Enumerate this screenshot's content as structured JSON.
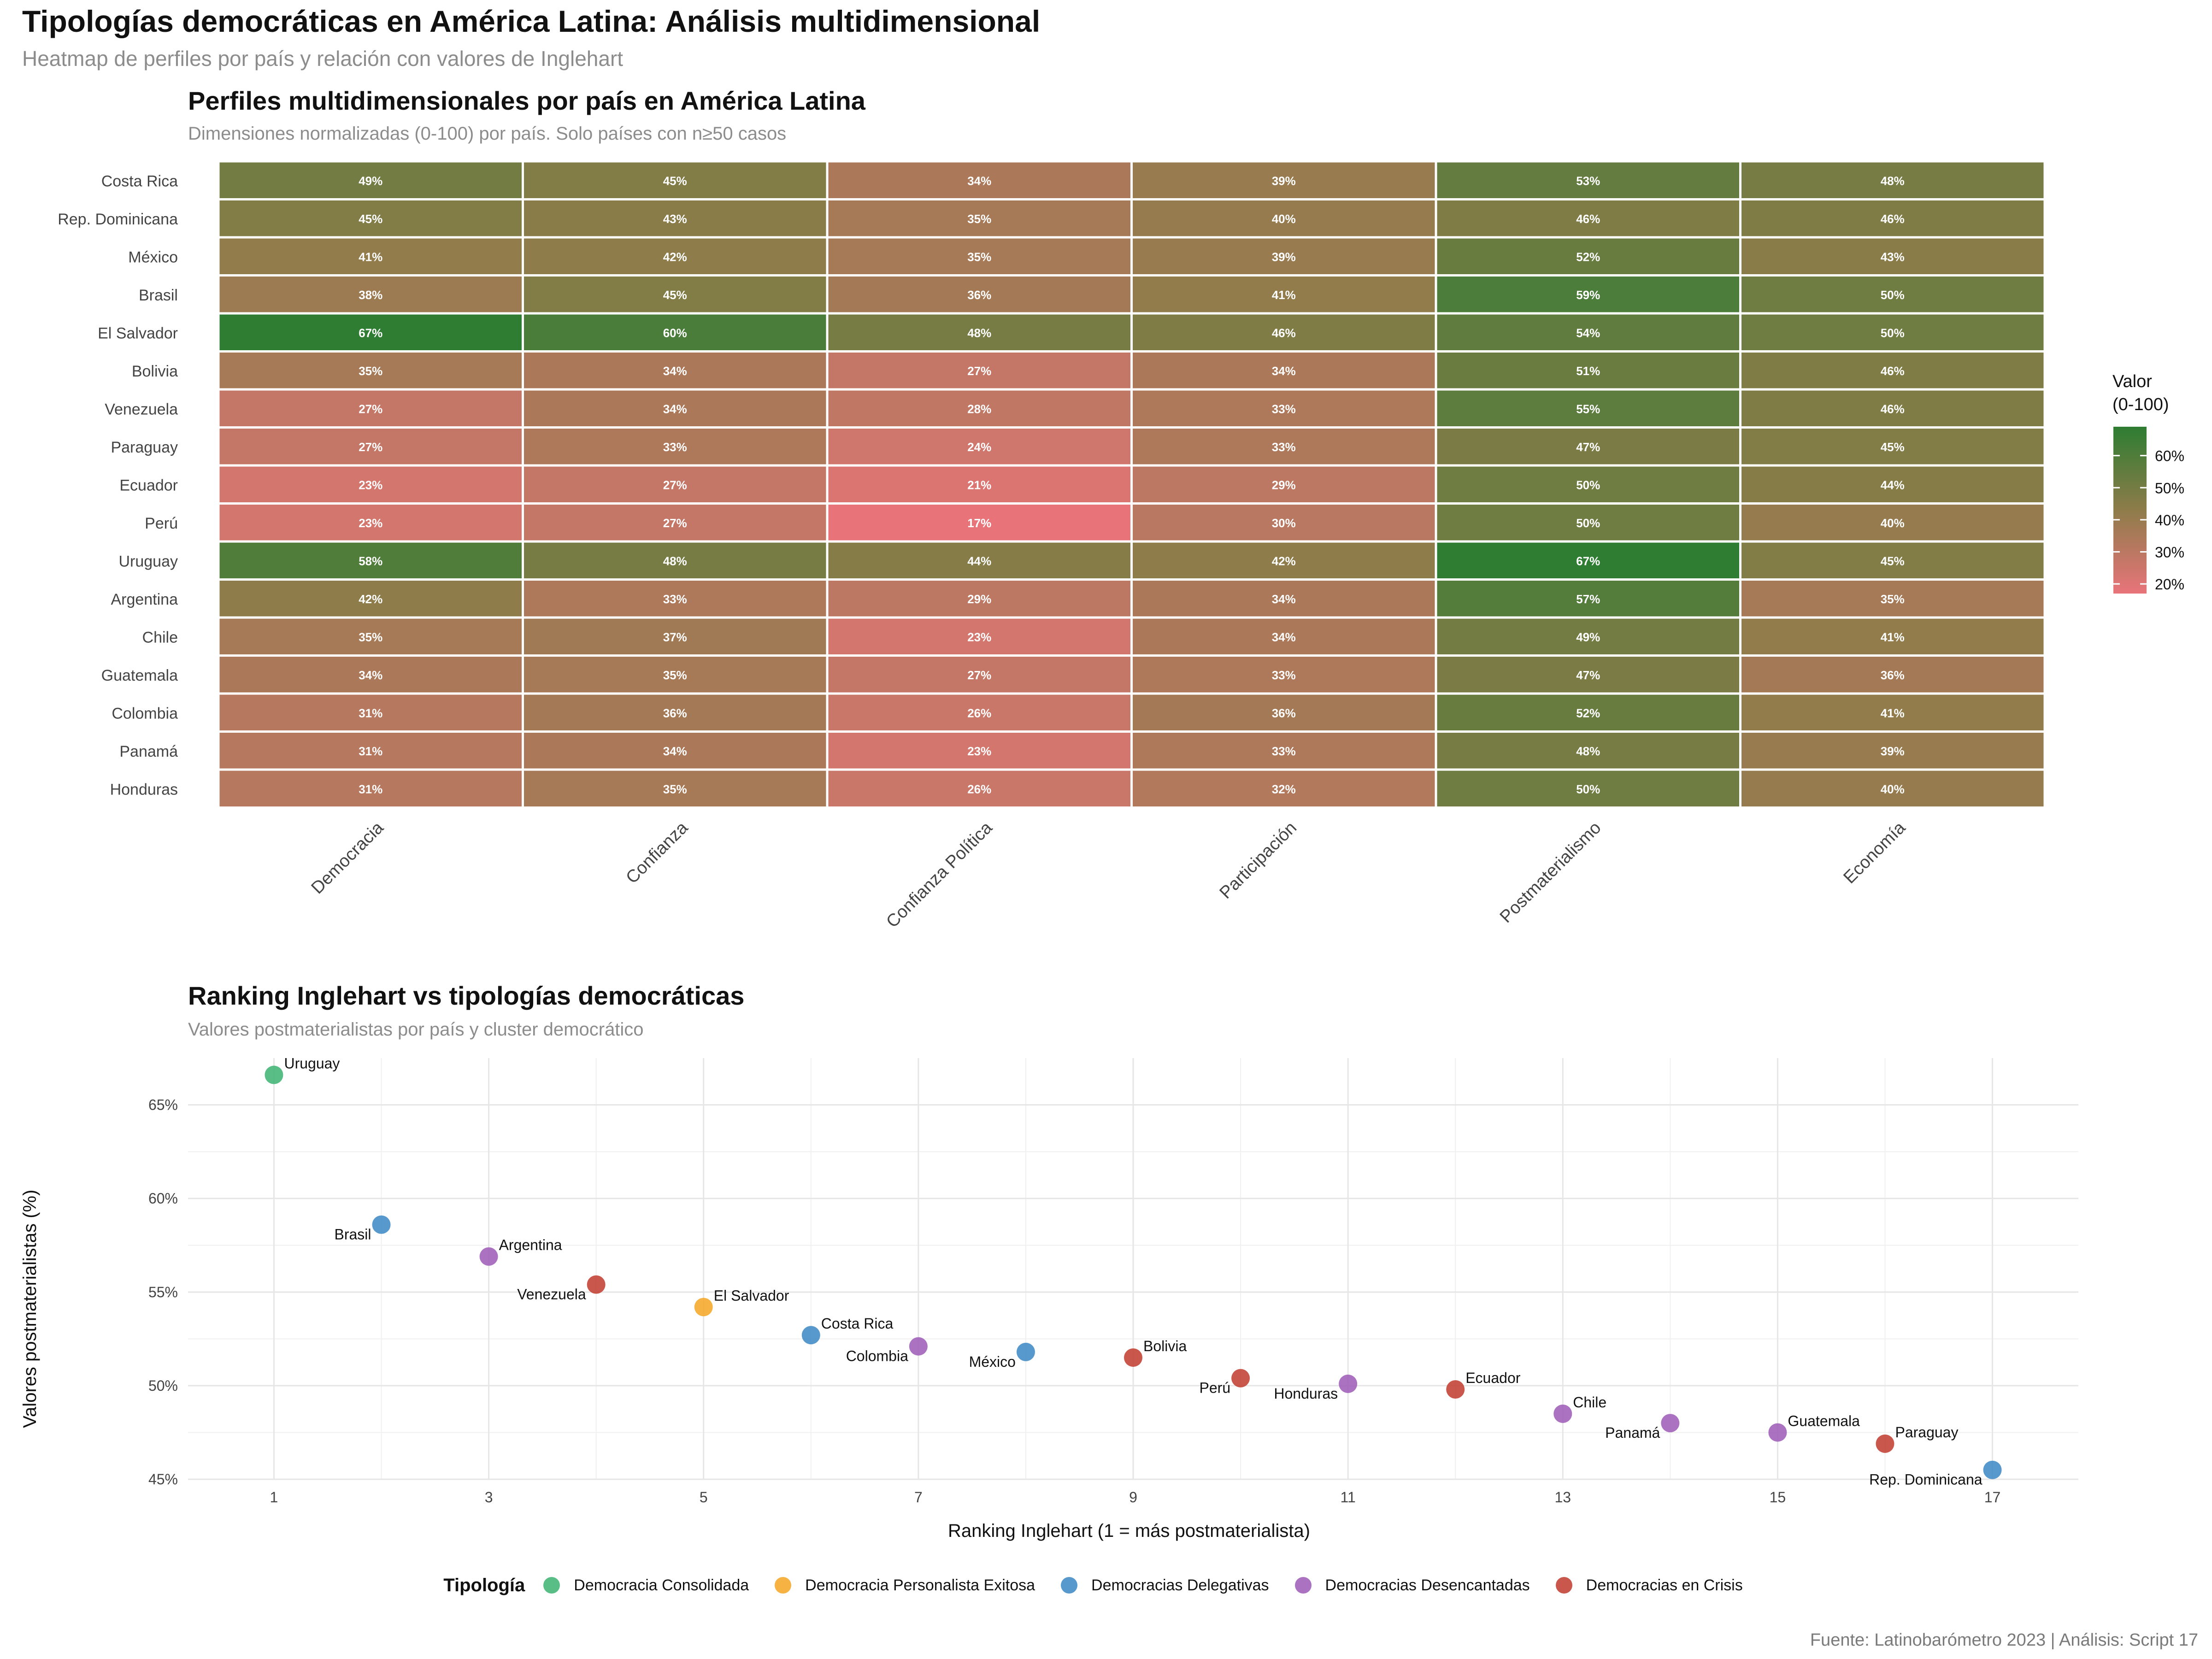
{
  "title": "Tipologías democráticas en América Latina: Análisis multidimensional",
  "subtitle": "Heatmap de perfiles por país y relación con valores de Inglehart",
  "caption": "Fuente: Latinobarómetro 2023 | Análisis: Script 17",
  "chart_data": [
    {
      "type": "heatmap",
      "title": "Perfiles multidimensionales por país en América Latina",
      "subtitle": "Dimensiones normalizadas (0-100) por país. Solo países con n≥50 casos",
      "columns": [
        "Democracia",
        "Confianza",
        "Confianza Política",
        "Participación",
        "Postmaterialismo",
        "Economía"
      ],
      "rows": [
        "Costa Rica",
        "Rep. Dominicana",
        "México",
        "Brasil",
        "El Salvador",
        "Bolivia",
        "Venezuela",
        "Paraguay",
        "Ecuador",
        "Perú",
        "Uruguay",
        "Argentina",
        "Chile",
        "Guatemala",
        "Colombia",
        "Panamá",
        "Honduras"
      ],
      "values": [
        [
          49,
          45,
          34,
          39,
          53,
          48
        ],
        [
          45,
          43,
          35,
          40,
          46,
          46
        ],
        [
          41,
          42,
          35,
          39,
          52,
          43
        ],
        [
          38,
          45,
          36,
          41,
          59,
          50
        ],
        [
          67,
          60,
          48,
          46,
          54,
          50
        ],
        [
          35,
          34,
          27,
          34,
          51,
          46
        ],
        [
          27,
          34,
          28,
          33,
          55,
          46
        ],
        [
          27,
          33,
          24,
          33,
          47,
          45
        ],
        [
          23,
          27,
          21,
          29,
          50,
          44
        ],
        [
          23,
          27,
          17,
          30,
          50,
          40
        ],
        [
          58,
          48,
          44,
          42,
          67,
          45
        ],
        [
          42,
          33,
          29,
          34,
          57,
          35
        ],
        [
          35,
          37,
          23,
          34,
          49,
          41
        ],
        [
          34,
          35,
          27,
          33,
          47,
          36
        ],
        [
          31,
          36,
          26,
          36,
          52,
          41
        ],
        [
          31,
          34,
          23,
          33,
          48,
          39
        ],
        [
          31,
          35,
          26,
          32,
          50,
          40
        ]
      ],
      "value_suffix": "%",
      "color_scale": {
        "low": "#e8747a",
        "mid": "#8e7c4a",
        "high": "#2e7d32",
        "domain": [
          17,
          67
        ]
      },
      "legend": {
        "title_line1": "Valor",
        "title_line2": "(0-100)",
        "ticks": [
          20,
          30,
          40,
          50,
          60
        ],
        "tick_labels": [
          "20%",
          "30%",
          "40%",
          "50%",
          "60%"
        ]
      }
    },
    {
      "type": "scatter",
      "title": "Ranking Inglehart vs tipologías democráticas",
      "subtitle": "Valores postmaterialistas por país y cluster democrático",
      "xlabel": "Ranking Inglehart (1 = más postmaterialista)",
      "ylabel": "Valores postmaterialistas (%)",
      "xlim": [
        0.2,
        17.8
      ],
      "ylim": [
        45,
        67.5
      ],
      "xticks": [
        1,
        3,
        5,
        7,
        9,
        11,
        13,
        15,
        17
      ],
      "yticks": [
        45,
        50,
        55,
        60,
        65
      ],
      "ytick_labels": [
        "45%",
        "50%",
        "55%",
        "60%",
        "65%"
      ],
      "points": [
        {
          "label": "Uruguay",
          "x": 1,
          "y": 66.6,
          "cluster": "Democracia Consolidada",
          "label_side": "right"
        },
        {
          "label": "Brasil",
          "x": 2,
          "y": 58.6,
          "cluster": "Democracias Delegativas",
          "label_side": "left"
        },
        {
          "label": "Argentina",
          "x": 3,
          "y": 56.9,
          "cluster": "Democracias Desencantadas",
          "label_side": "right"
        },
        {
          "label": "Venezuela",
          "x": 4,
          "y": 55.4,
          "cluster": "Democracias en Crisis",
          "label_side": "left"
        },
        {
          "label": "El Salvador",
          "x": 5,
          "y": 54.2,
          "cluster": "Democracia Personalista Exitosa",
          "label_side": "right"
        },
        {
          "label": "Costa Rica",
          "x": 6,
          "y": 52.7,
          "cluster": "Democracias Delegativas",
          "label_side": "right"
        },
        {
          "label": "Colombia",
          "x": 7,
          "y": 52.1,
          "cluster": "Democracias Desencantadas",
          "label_side": "left"
        },
        {
          "label": "México",
          "x": 8,
          "y": 51.8,
          "cluster": "Democracias Delegativas",
          "label_side": "left"
        },
        {
          "label": "Bolivia",
          "x": 9,
          "y": 51.5,
          "cluster": "Democracias en Crisis",
          "label_side": "right"
        },
        {
          "label": "Perú",
          "x": 10,
          "y": 50.4,
          "cluster": "Democracias en Crisis",
          "label_side": "left"
        },
        {
          "label": "Honduras",
          "x": 11,
          "y": 50.1,
          "cluster": "Democracias Desencantadas",
          "label_side": "left"
        },
        {
          "label": "Ecuador",
          "x": 12,
          "y": 49.8,
          "cluster": "Democracias en Crisis",
          "label_side": "right"
        },
        {
          "label": "Chile",
          "x": 13,
          "y": 48.5,
          "cluster": "Democracias Desencantadas",
          "label_side": "right"
        },
        {
          "label": "Panamá",
          "x": 14,
          "y": 48.0,
          "cluster": "Democracias Desencantadas",
          "label_side": "left"
        },
        {
          "label": "Guatemala",
          "x": 15,
          "y": 47.5,
          "cluster": "Democracias Desencantadas",
          "label_side": "right"
        },
        {
          "label": "Paraguay",
          "x": 16,
          "y": 46.9,
          "cluster": "Democracias en Crisis",
          "label_side": "right"
        },
        {
          "label": "Rep. Dominicana",
          "x": 17,
          "y": 45.5,
          "cluster": "Democracias Delegativas",
          "label_side": "left"
        }
      ],
      "legend": {
        "title": "Tipología",
        "items": [
          {
            "name": "Democracia Consolidada",
            "color": "#3cb371"
          },
          {
            "name": "Democracia Personalista Exitosa",
            "color": "#f5a623"
          },
          {
            "name": "Democracias Delegativas",
            "color": "#3a87c4"
          },
          {
            "name": "Democracias Desencantadas",
            "color": "#9b59b6"
          },
          {
            "name": "Democracias en Crisis",
            "color": "#c0392b"
          }
        ]
      }
    }
  ]
}
